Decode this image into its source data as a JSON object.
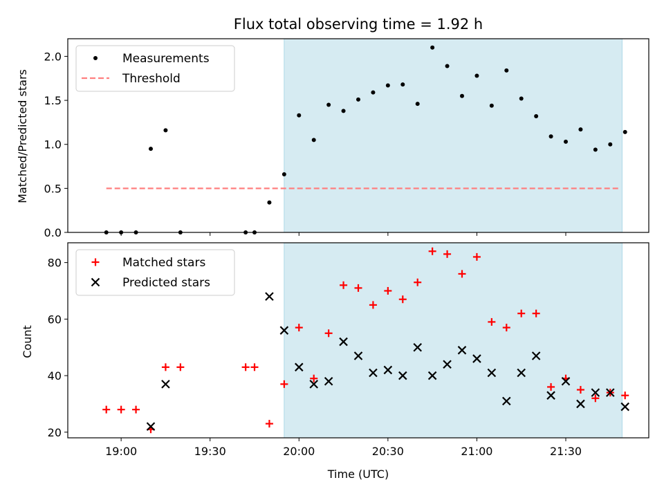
{
  "chart_data": [
    {
      "type": "scatter",
      "title": "Flux total observing time = 1.92 h",
      "xlabel": "",
      "ylabel": "Matched/Predicted stars",
      "ylim": [
        0.0,
        2.2
      ],
      "yticks": [
        "0.0",
        "0.5",
        "1.0",
        "1.5",
        "2.0"
      ],
      "xlim_minutes": [
        1122,
        1318
      ],
      "shaded_region": {
        "start": "19:55",
        "end": "21:49",
        "color": "#add8e6"
      },
      "legend": {
        "position": "upper-left",
        "entries": [
          "Measurements",
          "Threshold"
        ]
      },
      "series": [
        {
          "name": "Measurements",
          "marker": "dot",
          "color": "#000000",
          "x": [
            "18:55",
            "19:00",
            "19:05",
            "19:10",
            "19:15",
            "19:20",
            "19:42",
            "19:45",
            "19:50",
            "19:55",
            "20:00",
            "20:05",
            "20:10",
            "20:15",
            "20:20",
            "20:25",
            "20:30",
            "20:35",
            "20:40",
            "20:45",
            "20:50",
            "20:55",
            "21:00",
            "21:05",
            "21:10",
            "21:15",
            "21:20",
            "21:25",
            "21:30",
            "21:35",
            "21:40",
            "21:45",
            "21:50"
          ],
          "values": [
            0.0,
            0.0,
            0.0,
            0.95,
            1.16,
            0.0,
            0.0,
            0.0,
            0.34,
            0.66,
            1.33,
            1.05,
            1.45,
            1.38,
            1.51,
            1.59,
            1.67,
            1.68,
            1.46,
            2.1,
            1.89,
            1.55,
            1.78,
            1.44,
            1.84,
            1.52,
            1.32,
            1.09,
            1.03,
            1.17,
            0.94,
            1.0,
            1.14
          ]
        },
        {
          "name": "Threshold",
          "style": "dashed",
          "color": "#ff7f7f",
          "x": [
            "18:55",
            "21:48"
          ],
          "values": [
            0.5,
            0.5
          ]
        }
      ]
    },
    {
      "type": "scatter",
      "title": "",
      "xlabel": "Time (UTC)",
      "ylabel": "Count",
      "ylim": [
        18,
        87
      ],
      "yticks": [
        "20",
        "40",
        "60",
        "80"
      ],
      "xticks": [
        "19:00",
        "19:30",
        "20:00",
        "20:30",
        "21:00",
        "21:30"
      ],
      "xlim_minutes": [
        1122,
        1318
      ],
      "shaded_region": {
        "start": "19:55",
        "end": "21:49",
        "color": "#add8e6"
      },
      "legend": {
        "position": "upper-left",
        "entries": [
          "Matched stars",
          "Predicted stars"
        ]
      },
      "series": [
        {
          "name": "Matched stars",
          "marker": "plus",
          "color": "#ff0000",
          "x": [
            "18:55",
            "19:00",
            "19:05",
            "19:10",
            "19:15",
            "19:20",
            "19:42",
            "19:45",
            "19:50",
            "19:55",
            "20:00",
            "20:05",
            "20:10",
            "20:15",
            "20:20",
            "20:25",
            "20:30",
            "20:35",
            "20:40",
            "20:45",
            "20:50",
            "20:55",
            "21:00",
            "21:05",
            "21:10",
            "21:15",
            "21:20",
            "21:25",
            "21:30",
            "21:35",
            "21:40",
            "21:45",
            "21:50"
          ],
          "values": [
            28,
            28,
            28,
            21,
            43,
            43,
            43,
            43,
            23,
            37,
            57,
            39,
            55,
            72,
            71,
            65,
            70,
            67,
            73,
            84,
            83,
            76,
            82,
            59,
            57,
            62,
            62,
            36,
            39,
            35,
            32,
            34,
            33
          ]
        },
        {
          "name": "Predicted stars",
          "marker": "x",
          "color": "#000000",
          "x": [
            "19:10",
            "19:15",
            "19:50",
            "19:55",
            "20:00",
            "20:05",
            "20:10",
            "20:15",
            "20:20",
            "20:25",
            "20:30",
            "20:35",
            "20:40",
            "20:45",
            "20:50",
            "20:55",
            "21:00",
            "21:05",
            "21:10",
            "21:15",
            "21:20",
            "21:25",
            "21:30",
            "21:35",
            "21:40",
            "21:45",
            "21:50"
          ],
          "values": [
            22,
            37,
            68,
            56,
            43,
            37,
            38,
            52,
            47,
            41,
            42,
            40,
            50,
            40,
            44,
            49,
            46,
            41,
            31,
            41,
            47,
            33,
            38,
            30,
            34,
            34,
            29
          ]
        }
      ]
    }
  ]
}
